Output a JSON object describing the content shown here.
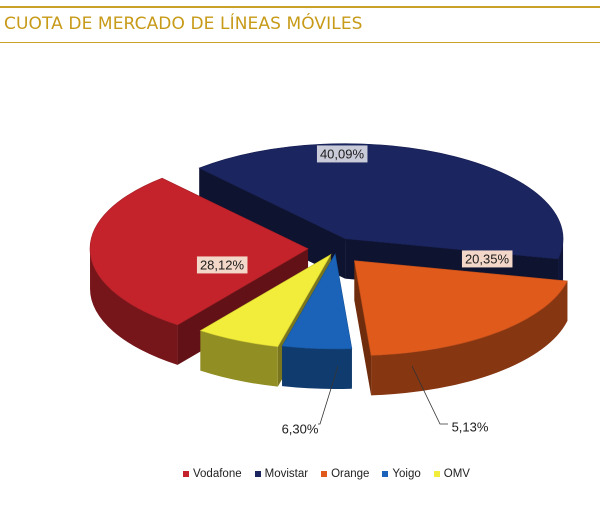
{
  "header": {
    "title": "CUOTA DE MERCADO DE LÍNEAS MÓVILES"
  },
  "colors": {
    "accent": "#c9a227",
    "title": "#c79a18"
  },
  "chart_data": {
    "type": "pie",
    "title": "CUOTA DE MERCADO DE LÍNEAS MÓVILES",
    "legend_position": "bottom",
    "slices": [
      {
        "name": "Movistar",
        "value": 40.09,
        "label": "40,09%",
        "color": "#1b2560"
      },
      {
        "name": "Orange",
        "value": 20.35,
        "label": "20,35%",
        "color": "#e05a1c"
      },
      {
        "name": "Yoigo",
        "value": 5.13,
        "label": "5,13%",
        "color": "#1a63b8"
      },
      {
        "name": "OMV",
        "value": 6.3,
        "label": "6,30%",
        "color": "#f2ec3a"
      },
      {
        "name": "Vodafone",
        "value": 28.12,
        "label": "28,12%",
        "color": "#c4232b"
      }
    ]
  }
}
